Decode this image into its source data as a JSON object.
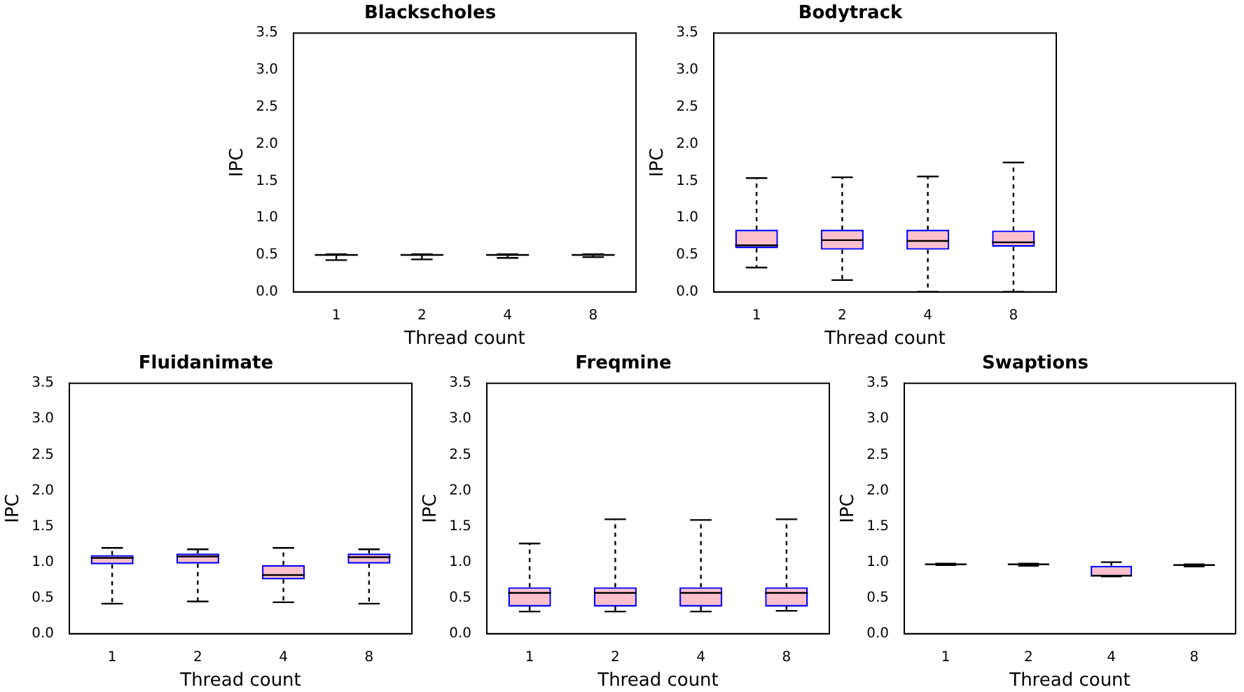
{
  "chart_data": [
    {
      "type": "box",
      "title": "Blackscholes",
      "xlabel": "Thread count",
      "ylabel": "IPC",
      "categories": [
        "1",
        "2",
        "4",
        "8"
      ],
      "color": "#0000ff",
      "ylim": [
        0,
        3.5
      ],
      "yticks": [
        {
          "value": 0,
          "label": "0.0"
        },
        {
          "value": 0.5,
          "label": "0.5"
        },
        {
          "value": 1,
          "label": "1.0"
        },
        {
          "value": 1.5,
          "label": "1.5"
        },
        {
          "value": 2,
          "label": "2.0"
        },
        {
          "value": 2.5,
          "label": "2.5"
        },
        {
          "value": 3,
          "label": "3.0"
        },
        {
          "value": 3.5,
          "label": "3.5"
        }
      ],
      "boxes": [
        {
          "low": 0.43,
          "q1": 0.49,
          "median": 0.5,
          "q3": 0.51,
          "high": 0.51
        },
        {
          "low": 0.44,
          "q1": 0.49,
          "median": 0.5,
          "q3": 0.51,
          "high": 0.51
        },
        {
          "low": 0.46,
          "q1": 0.49,
          "median": 0.5,
          "q3": 0.51,
          "high": 0.51
        },
        {
          "low": 0.47,
          "q1": 0.49,
          "median": 0.5,
          "q3": 0.51,
          "high": 0.51
        }
      ]
    },
    {
      "type": "box",
      "title": "Bodytrack",
      "xlabel": "Thread count",
      "ylabel": "IPC",
      "categories": [
        "1",
        "2",
        "4",
        "8"
      ],
      "color": "#0000ff",
      "ylim": [
        0,
        3.5
      ],
      "yticks": [
        {
          "value": 0,
          "label": "0.0"
        },
        {
          "value": 0.5,
          "label": "0.5"
        },
        {
          "value": 1,
          "label": "1.0"
        },
        {
          "value": 1.5,
          "label": "1.5"
        },
        {
          "value": 2,
          "label": "2.0"
        },
        {
          "value": 2.5,
          "label": "2.5"
        },
        {
          "value": 3,
          "label": "3.0"
        },
        {
          "value": 3.5,
          "label": "3.5"
        }
      ],
      "boxes": [
        {
          "low": 0.33,
          "q1": 0.59,
          "median": 0.63,
          "q3": 0.84,
          "high": 1.54
        },
        {
          "low": 0.16,
          "q1": 0.57,
          "median": 0.7,
          "q3": 0.84,
          "high": 1.55
        },
        {
          "low": 0,
          "q1": 0.57,
          "median": 0.69,
          "q3": 0.84,
          "high": 1.56
        },
        {
          "low": 0,
          "q1": 0.61,
          "median": 0.67,
          "q3": 0.83,
          "high": 1.75
        }
      ]
    },
    {
      "type": "box",
      "title": "Fluidanimate",
      "xlabel": "Thread count",
      "ylabel": "IPC",
      "categories": [
        "1",
        "2",
        "4",
        "8"
      ],
      "color": "#0000ff",
      "ylim": [
        0,
        3.5
      ],
      "yticks": [
        {
          "value": 0,
          "label": "0.0"
        },
        {
          "value": 0.5,
          "label": "0.5"
        },
        {
          "value": 1,
          "label": "1.0"
        },
        {
          "value": 1.5,
          "label": "1.5"
        },
        {
          "value": 2,
          "label": "2.0"
        },
        {
          "value": 2.5,
          "label": "2.5"
        },
        {
          "value": 3,
          "label": "3.0"
        },
        {
          "value": 3.5,
          "label": "3.5"
        }
      ],
      "boxes": [
        {
          "low": 0.42,
          "q1": 0.97,
          "median": 1.06,
          "q3": 1.1,
          "high": 1.2
        },
        {
          "low": 0.45,
          "q1": 0.98,
          "median": 1.08,
          "q3": 1.12,
          "high": 1.18
        },
        {
          "low": 0.44,
          "q1": 0.76,
          "median": 0.82,
          "q3": 0.96,
          "high": 1.2
        },
        {
          "low": 0.42,
          "q1": 0.98,
          "median": 1.07,
          "q3": 1.12,
          "high": 1.18
        }
      ]
    },
    {
      "type": "box",
      "title": "Freqmine",
      "xlabel": "Thread count",
      "ylabel": "IPC",
      "categories": [
        "1",
        "2",
        "4",
        "8"
      ],
      "color": "#0000ff",
      "ylim": [
        0,
        3.5
      ],
      "yticks": [
        {
          "value": 0,
          "label": "0.0"
        },
        {
          "value": 0.5,
          "label": "0.5"
        },
        {
          "value": 1,
          "label": "1.0"
        },
        {
          "value": 1.5,
          "label": "1.5"
        },
        {
          "value": 2,
          "label": "2.0"
        },
        {
          "value": 2.5,
          "label": "2.5"
        },
        {
          "value": 3,
          "label": "3.0"
        },
        {
          "value": 3.5,
          "label": "3.5"
        }
      ],
      "boxes": [
        {
          "low": 0.31,
          "q1": 0.38,
          "median": 0.57,
          "q3": 0.65,
          "high": 1.26
        },
        {
          "low": 0.31,
          "q1": 0.38,
          "median": 0.57,
          "q3": 0.65,
          "high": 1.6
        },
        {
          "low": 0.31,
          "q1": 0.38,
          "median": 0.57,
          "q3": 0.65,
          "high": 1.59
        },
        {
          "low": 0.32,
          "q1": 0.38,
          "median": 0.57,
          "q3": 0.65,
          "high": 1.6
        }
      ]
    },
    {
      "type": "box",
      "title": "Swaptions",
      "xlabel": "Thread count",
      "ylabel": "IPC",
      "categories": [
        "1",
        "2",
        "4",
        "8"
      ],
      "color": "#0000ff",
      "ylim": [
        0,
        3.5
      ],
      "yticks": [
        {
          "value": 0,
          "label": "0.0"
        },
        {
          "value": 0.5,
          "label": "0.5"
        },
        {
          "value": 1,
          "label": "1.0"
        },
        {
          "value": 1.5,
          "label": "1.5"
        },
        {
          "value": 2,
          "label": "2.0"
        },
        {
          "value": 2.5,
          "label": "2.5"
        },
        {
          "value": 3,
          "label": "3.0"
        },
        {
          "value": 3.5,
          "label": "3.5"
        }
      ],
      "boxes": [
        {
          "low": 0.96,
          "q1": 0.96,
          "median": 0.97,
          "q3": 0.98,
          "high": 0.98
        },
        {
          "low": 0.95,
          "q1": 0.96,
          "median": 0.97,
          "q3": 0.98,
          "high": 0.98
        },
        {
          "low": 0.8,
          "q1": 0.8,
          "median": 0.81,
          "q3": 0.95,
          "high": 1.0
        },
        {
          "low": 0.94,
          "q1": 0.95,
          "median": 0.96,
          "q3": 0.96,
          "high": 0.97
        }
      ]
    }
  ]
}
